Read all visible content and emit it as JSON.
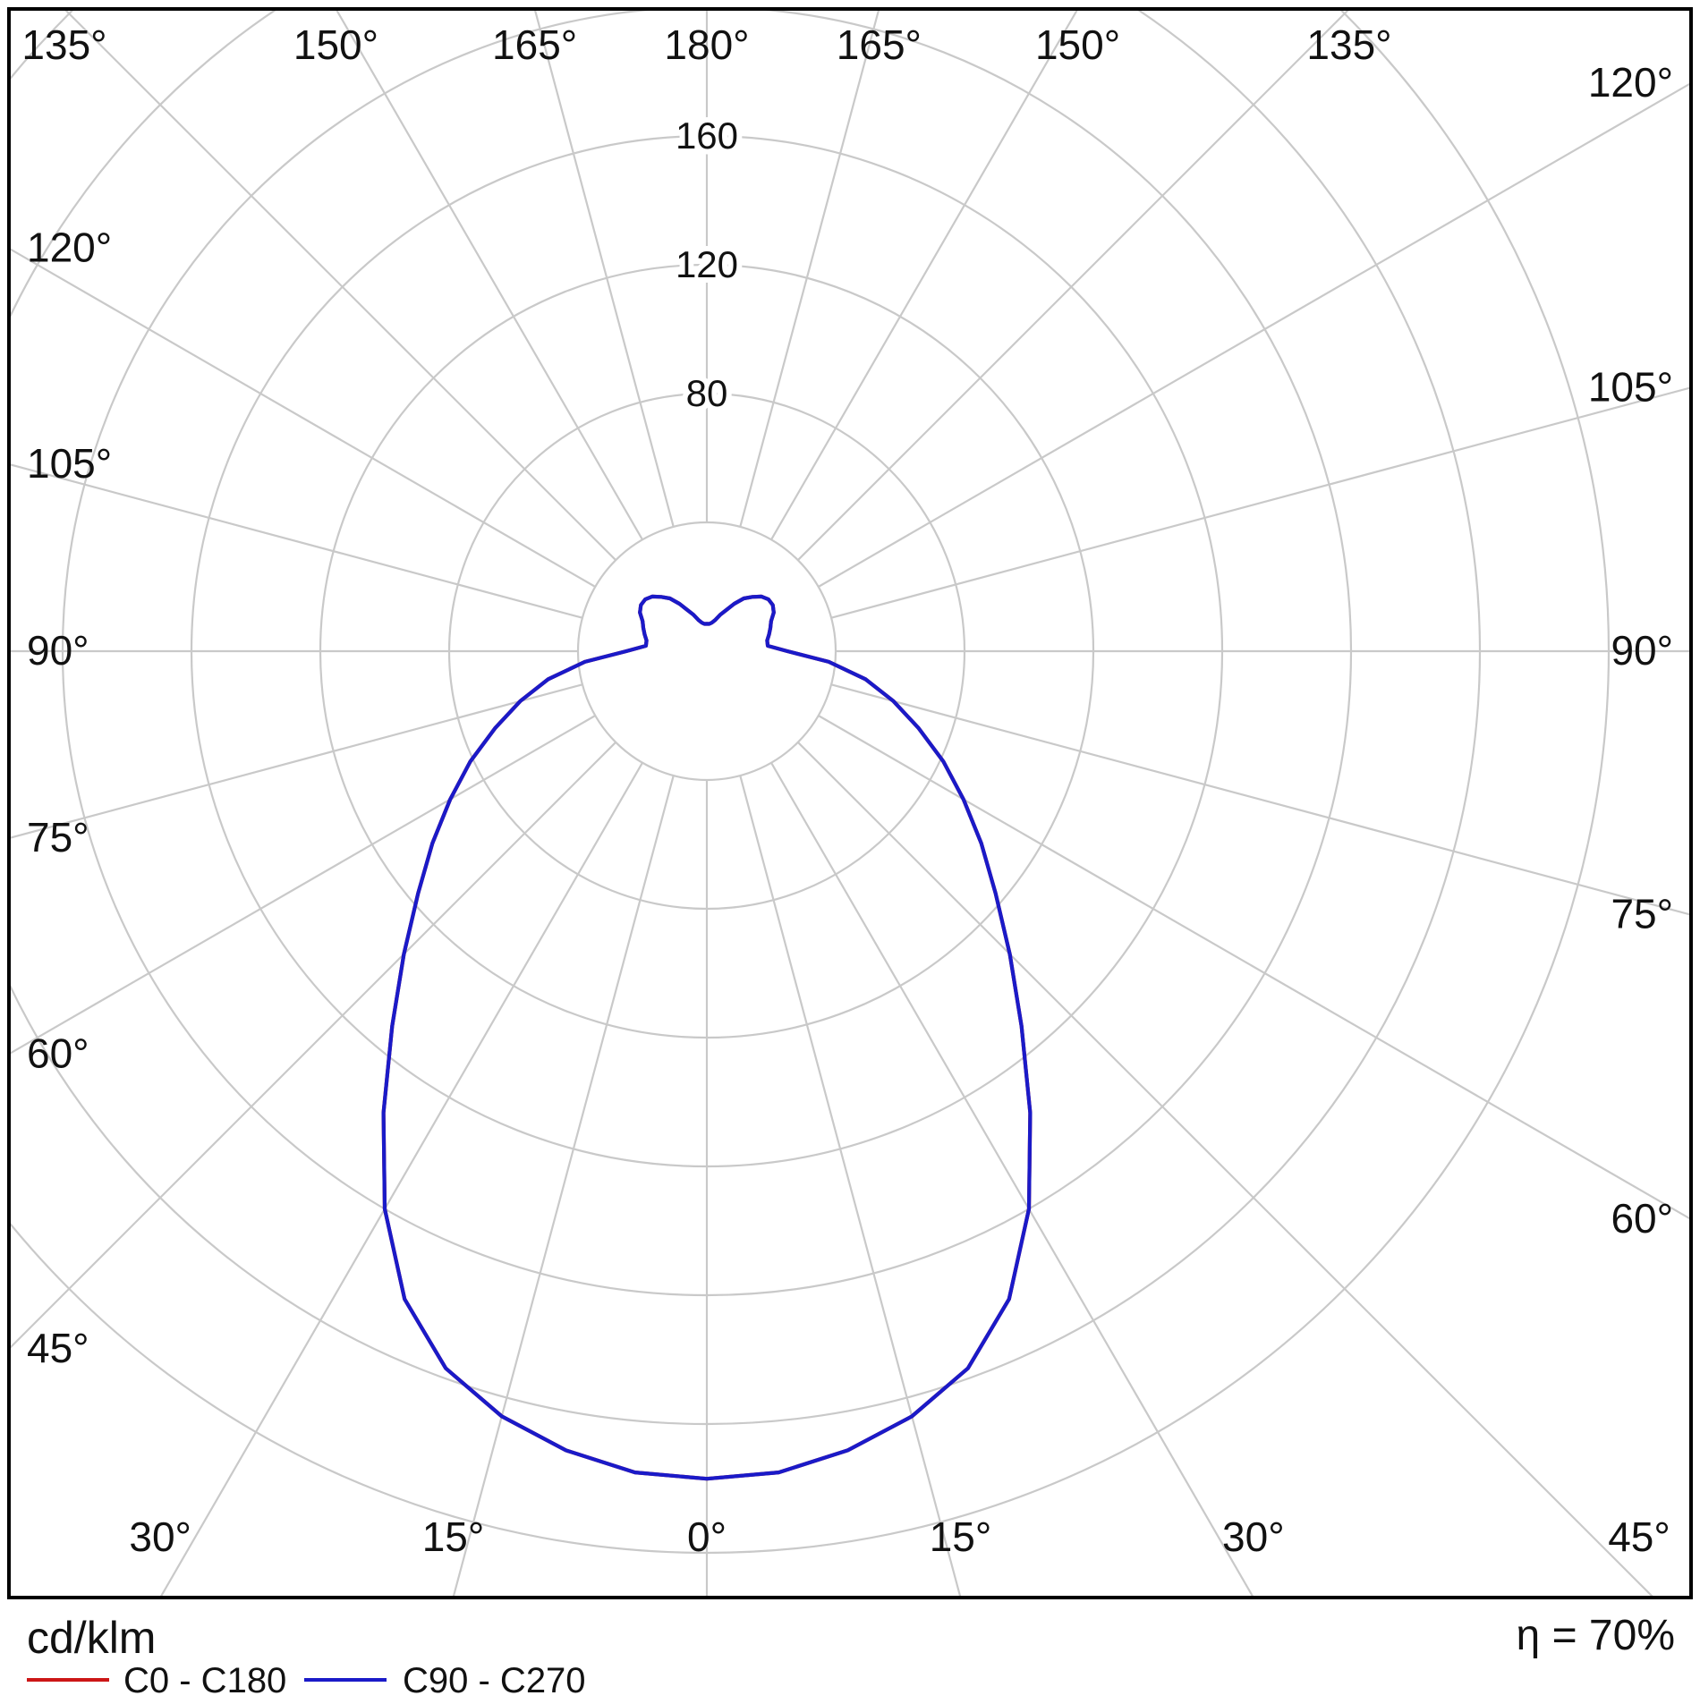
{
  "footer": {
    "unit_label": "cd/klm",
    "efficiency_label": "η = 70%"
  },
  "legend": [
    {
      "label": "C0 - C180",
      "color": "#cc1616"
    },
    {
      "label": "C90 - C270",
      "color": "#1a1ac8"
    }
  ],
  "chart_data": {
    "type": "polar_photometric",
    "unit": "cd/klm",
    "eta_percent": 70,
    "grid_color": "#c9c9c9",
    "angle_step_deg": 15,
    "angle_labels_deg": [
      0,
      15,
      30,
      45,
      60,
      75,
      90,
      105,
      120,
      135,
      150,
      165,
      180
    ],
    "ring_values": [
      40,
      80,
      120,
      160,
      200,
      240,
      280
    ],
    "ring_labels": [
      80,
      120,
      160
    ],
    "gamma_step_deg": 5,
    "series": [
      {
        "name": "C0 - C180",
        "color": "#cc1616",
        "values_cd_per_klm": [
          257,
          256,
          252,
          246,
          237,
          222,
          200,
          175,
          152,
          133,
          117,
          104,
          92,
          81,
          70,
          60,
          50,
          38,
          25,
          19,
          19,
          20,
          21,
          22,
          24,
          25,
          25,
          24,
          22,
          20,
          17,
          14,
          12,
          10,
          9,
          8.5,
          8.5
        ]
      },
      {
        "name": "C90 - C270",
        "color": "#1a1ac8",
        "values_cd_per_klm": [
          257,
          256,
          252,
          246,
          237,
          222,
          200,
          175,
          152,
          133,
          117,
          104,
          92,
          81,
          70,
          60,
          50,
          38,
          25,
          19,
          19,
          20,
          21,
          22,
          24,
          25,
          25,
          24,
          22,
          20,
          17,
          14,
          12,
          10,
          9,
          8.5,
          8.5
        ]
      }
    ]
  }
}
